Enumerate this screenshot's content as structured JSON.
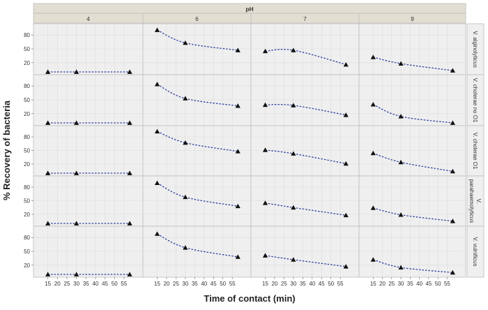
{
  "chart_data": {
    "type": "line",
    "title": "",
    "facet_x_label": "pH",
    "facet_x_levels": [
      "4",
      "6",
      "7",
      "9"
    ],
    "facet_y_levels": [
      [
        "V. alginolyticus"
      ],
      [
        "V. cholerae no O1"
      ],
      [
        "V. cholerae O1"
      ],
      [
        "V.",
        "parahaemolyticus"
      ],
      [
        "V. vulnificus"
      ]
    ],
    "xlabel": "Time of contact (min)",
    "ylabel": "% Recovery of bacteria",
    "x_ticks": [
      15,
      20,
      25,
      30,
      35,
      40,
      45,
      50,
      55
    ],
    "y_ticks": [
      20,
      50,
      80
    ],
    "xlim": [
      10,
      62
    ],
    "ylim": [
      0,
      100
    ],
    "grid": true,
    "x": [
      15,
      30,
      58
    ],
    "series": [
      {
        "panel": [
          0,
          0
        ],
        "values": [
          0,
          0,
          0
        ]
      },
      {
        "panel": [
          0,
          1
        ],
        "values": [
          91,
          63,
          47
        ]
      },
      {
        "panel": [
          0,
          2
        ],
        "values": [
          45,
          47,
          16
        ]
      },
      {
        "panel": [
          0,
          3
        ],
        "values": [
          32,
          18,
          3
        ]
      },
      {
        "panel": [
          1,
          0
        ],
        "values": [
          0,
          0,
          0
        ]
      },
      {
        "panel": [
          1,
          1
        ],
        "values": [
          84,
          53,
          37
        ]
      },
      {
        "panel": [
          1,
          2
        ],
        "values": [
          39,
          38,
          17
        ]
      },
      {
        "panel": [
          1,
          3
        ],
        "values": [
          40,
          14,
          0
        ]
      },
      {
        "panel": [
          2,
          0
        ],
        "values": [
          0,
          0,
          0
        ]
      },
      {
        "panel": [
          2,
          1
        ],
        "values": [
          92,
          67,
          48
        ]
      },
      {
        "panel": [
          2,
          2
        ],
        "values": [
          51,
          43,
          21
        ]
      },
      {
        "panel": [
          2,
          3
        ],
        "values": [
          44,
          24,
          4
        ]
      },
      {
        "panel": [
          3,
          0
        ],
        "values": [
          0,
          0,
          0
        ]
      },
      {
        "panel": [
          3,
          1
        ],
        "values": [
          89,
          58,
          38
        ]
      },
      {
        "panel": [
          3,
          2
        ],
        "values": [
          45,
          35,
          18
        ]
      },
      {
        "panel": [
          3,
          3
        ],
        "values": [
          34,
          19,
          5
        ]
      },
      {
        "panel": [
          4,
          0
        ],
        "values": [
          0,
          0,
          0
        ]
      },
      {
        "panel": [
          4,
          1
        ],
        "values": [
          88,
          58,
          38
        ]
      },
      {
        "panel": [
          4,
          2
        ],
        "values": [
          41,
          32,
          17
        ]
      },
      {
        "panel": [
          4,
          3
        ],
        "values": [
          32,
          15,
          4
        ]
      }
    ],
    "colors": {
      "line": "#2e3f9e",
      "marker": "#111111",
      "panel_bg": "#efefef",
      "strip_bg": "#e3ded2",
      "grid": "#dcdcdc",
      "border": "#bdbdbd"
    }
  }
}
